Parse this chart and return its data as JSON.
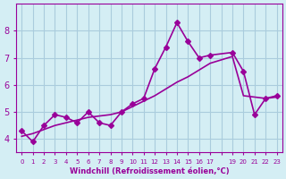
{
  "x_values": [
    0,
    1,
    2,
    3,
    4,
    5,
    6,
    7,
    8,
    9,
    10,
    11,
    12,
    13,
    14,
    15,
    16,
    17,
    19,
    20,
    21,
    22,
    23
  ],
  "y_main": [
    4.3,
    3.9,
    4.5,
    4.9,
    4.8,
    4.6,
    5.0,
    4.6,
    4.5,
    5.0,
    5.3,
    5.5,
    6.6,
    7.4,
    8.3,
    7.6,
    7.0,
    7.1,
    7.2,
    6.5,
    4.9,
    5.5,
    5.6
  ],
  "y_trend": [
    4.1,
    4.2,
    4.35,
    4.5,
    4.6,
    4.7,
    4.8,
    4.85,
    4.9,
    5.0,
    5.2,
    5.4,
    5.6,
    5.85,
    6.1,
    6.3,
    6.55,
    6.8,
    7.05,
    5.6,
    5.55,
    5.5,
    5.55
  ],
  "line_color": "#990099",
  "bg_color": "#d4eef4",
  "grid_color": "#aaccdd",
  "xlabel": "Windchill (Refroidissement éolien,°C)",
  "xlabel_color": "#990099",
  "tick_color": "#990099",
  "ylim": [
    3.5,
    9.0
  ],
  "xlim": [
    -0.5,
    23.5
  ],
  "yticks": [
    4,
    5,
    6,
    7,
    8
  ],
  "xticks": [
    0,
    1,
    2,
    3,
    4,
    5,
    6,
    7,
    8,
    9,
    10,
    11,
    12,
    13,
    14,
    15,
    16,
    17,
    18,
    19,
    20,
    21,
    22,
    23
  ],
  "xtick_labels": [
    "0",
    "1",
    "2",
    "3",
    "4",
    "5",
    "6",
    "7",
    "8",
    "9",
    "10",
    "11",
    "12",
    "13",
    "14",
    "15",
    "16",
    "17",
    "",
    "19",
    "20",
    "21",
    "22",
    "23"
  ],
  "marker": "D",
  "markersize": 3,
  "linewidth": 1.2
}
